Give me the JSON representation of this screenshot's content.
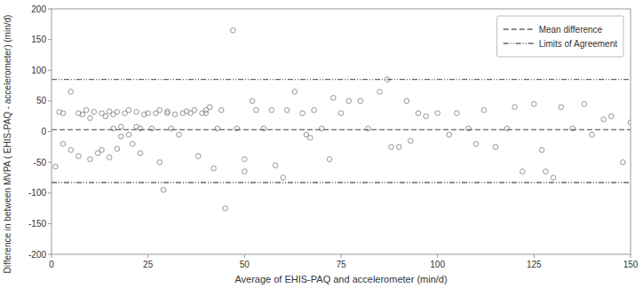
{
  "chart_data": {
    "type": "scatter",
    "xlabel": "Average of EHIS-PAQ and accelerometer (min/d)",
    "ylabel": "Difference in between MVPA ( EHIS-PAQ - accelerometer) (min/d)",
    "xlim": [
      0,
      150
    ],
    "xticks": [
      0,
      25,
      50,
      75,
      100,
      125,
      150
    ],
    "ylim": [
      -200,
      200
    ],
    "yticks": [
      -200,
      -150,
      -100,
      -50,
      0,
      50,
      100,
      150,
      200
    ],
    "grid": false,
    "legend": "upper right",
    "series": [
      {
        "type": "scatter",
        "color": "#888888",
        "marker": "open-circle",
        "x": [
          1,
          2,
          3,
          3,
          5,
          5,
          7,
          7,
          8,
          9,
          10,
          10,
          11,
          12,
          13,
          13,
          14,
          15,
          15,
          16,
          16,
          17,
          17,
          18,
          18,
          19,
          20,
          20,
          21,
          22,
          22,
          23,
          23,
          24,
          25,
          26,
          27,
          28,
          28,
          29,
          30,
          30,
          31,
          32,
          33,
          34,
          35,
          36,
          37,
          38,
          39,
          40,
          40,
          41,
          42,
          43,
          44,
          45,
          47,
          48,
          50,
          50,
          52,
          53,
          55,
          57,
          58,
          60,
          61,
          63,
          65,
          66,
          67,
          68,
          70,
          72,
          73,
          75,
          77,
          80,
          82,
          85,
          87,
          88,
          90,
          92,
          93,
          95,
          97,
          100,
          103,
          105,
          108,
          110,
          112,
          115,
          118,
          120,
          122,
          125,
          127,
          128,
          130,
          132,
          135,
          138,
          140,
          143,
          145,
          148,
          150
        ],
        "values": [
          -57,
          32,
          30,
          -20,
          65,
          -30,
          30,
          -40,
          28,
          35,
          -45,
          22,
          32,
          -35,
          30,
          -30,
          25,
          33,
          -42,
          28,
          5,
          32,
          -28,
          8,
          -8,
          30,
          35,
          -5,
          -20,
          32,
          8,
          5,
          -35,
          28,
          30,
          5,
          30,
          -50,
          35,
          -95,
          33,
          30,
          5,
          28,
          -5,
          30,
          33,
          30,
          35,
          -40,
          30,
          35,
          30,
          40,
          -60,
          5,
          35,
          -125,
          165,
          5,
          -45,
          -65,
          50,
          35,
          5,
          35,
          -55,
          -75,
          35,
          65,
          30,
          -5,
          -10,
          35,
          5,
          -45,
          55,
          30,
          50,
          50,
          5,
          65,
          85,
          -25,
          -25,
          50,
          -15,
          30,
          25,
          30,
          -5,
          30,
          5,
          -20,
          35,
          -25,
          5,
          40,
          -65,
          45,
          -30,
          -65,
          -75,
          40,
          5,
          45,
          -5,
          20,
          25,
          -50,
          15
        ]
      },
      {
        "name": "Mean difference",
        "type": "hline",
        "color": "#666666",
        "line_style": "dashed",
        "values": [
          3.0
        ]
      },
      {
        "name": "Limits of Agreement",
        "type": "hline",
        "color": "#666666",
        "line_style": "dash-dot-dot",
        "values": [
          85.0,
          -83.0
        ]
      }
    ]
  }
}
